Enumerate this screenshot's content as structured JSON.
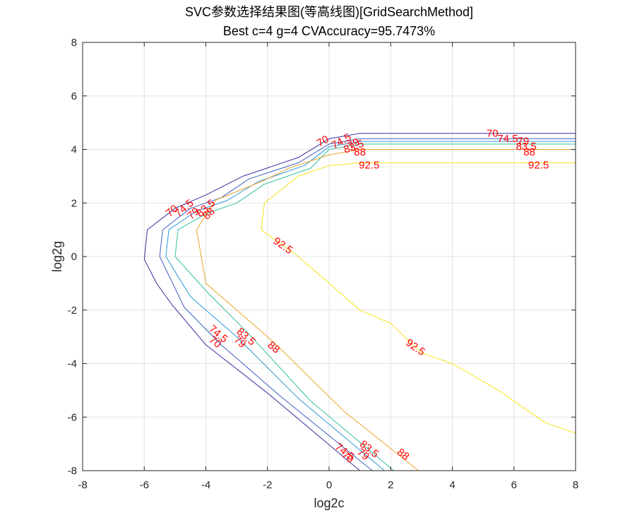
{
  "chart_data": {
    "type": "contour",
    "title": "SVC参数选择结果图(等高线图)[GridSearchMethod]",
    "subtitle": "Best c=4 g=4 CVAccuracy=95.7473%",
    "xlabel": "log2c",
    "ylabel": "log2g",
    "xlim": [
      -8,
      8
    ],
    "ylim": [
      -8,
      8
    ],
    "xticks": [
      "-8",
      "-6",
      "-4",
      "-2",
      "0",
      "2",
      "4",
      "6",
      "8"
    ],
    "yticks": [
      "-8",
      "-6",
      "-4",
      "-2",
      "0",
      "2",
      "4",
      "6",
      "8"
    ],
    "grid": true,
    "levels": [
      {
        "level": "70",
        "color": "#3b2f9b",
        "points": [
          [
            1,
            -8
          ],
          [
            -2,
            -5.1
          ],
          [
            -4,
            -3.3
          ],
          [
            -5.1,
            -1.8
          ],
          [
            -5.6,
            -1
          ],
          [
            -6,
            -0.1
          ],
          [
            -5.9,
            1
          ],
          [
            -5,
            1.8
          ],
          [
            -4,
            2.3
          ],
          [
            -2.8,
            3
          ],
          [
            -1,
            3.7
          ],
          [
            0,
            4.4
          ],
          [
            1,
            4.6
          ],
          [
            8,
            4.6
          ]
        ],
        "labels": [
          {
            "text": "70",
            "x": 0.6,
            "y": -7.5,
            "angle": 38
          },
          {
            "text": "70",
            "x": -3.7,
            "y": -3.2,
            "angle": 40
          },
          {
            "text": "70",
            "x": -5.1,
            "y": 1.7,
            "angle": -40
          },
          {
            "text": "70",
            "x": -0.2,
            "y": 4.3,
            "angle": -30
          },
          {
            "text": "70",
            "x": 5.3,
            "y": 4.6,
            "angle": 0
          }
        ]
      },
      {
        "level": "74.5",
        "color": "#3d5ec1",
        "points": [
          [
            1.4,
            -8
          ],
          [
            -1.6,
            -5.2
          ],
          [
            -3.5,
            -3.3
          ],
          [
            -4.7,
            -1.9
          ],
          [
            -5.5,
            0
          ],
          [
            -5.4,
            1
          ],
          [
            -4.5,
            1.8
          ],
          [
            -3.5,
            2.2
          ],
          [
            -2.6,
            2.9
          ],
          [
            -1,
            3.5
          ],
          [
            0,
            4.2
          ],
          [
            1,
            4.4
          ],
          [
            8,
            4.4
          ]
        ],
        "labels": [
          {
            "text": "74.5",
            "x": 0.5,
            "y": -7.3,
            "angle": 38
          },
          {
            "text": "74.5",
            "x": -3.6,
            "y": -2.9,
            "angle": 40
          },
          {
            "text": "74.5",
            "x": -4.7,
            "y": 1.8,
            "angle": -40
          },
          {
            "text": "74.5",
            "x": 0.4,
            "y": 4.3,
            "angle": -30
          },
          {
            "text": "74.5",
            "x": 5.8,
            "y": 4.4,
            "angle": 0
          }
        ]
      },
      {
        "level": "79",
        "color": "#2a96d8",
        "points": [
          [
            1.8,
            -8
          ],
          [
            -1,
            -5.3
          ],
          [
            -3,
            -3
          ],
          [
            -4.5,
            -1.5
          ],
          [
            -5.3,
            0
          ],
          [
            -5.2,
            1
          ],
          [
            -4.3,
            1.7
          ],
          [
            -3.3,
            2.1
          ],
          [
            -2.3,
            2.8
          ],
          [
            -0.8,
            3.4
          ],
          [
            0,
            4.1
          ],
          [
            1,
            4.3
          ],
          [
            8,
            4.3
          ]
        ],
        "labels": [
          {
            "text": "79",
            "x": 1.1,
            "y": -7.4,
            "angle": 38
          },
          {
            "text": "79",
            "x": -2.9,
            "y": -3.2,
            "angle": 40
          },
          {
            "text": "79",
            "x": -4.4,
            "y": 1.6,
            "angle": -40
          },
          {
            "text": "79",
            "x": 0.8,
            "y": 4.2,
            "angle": -30
          },
          {
            "text": "79",
            "x": 6.3,
            "y": 4.3,
            "angle": 0
          }
        ]
      },
      {
        "level": "83.5",
        "color": "#30c09e",
        "points": [
          [
            2.1,
            -8
          ],
          [
            -0.6,
            -5.4
          ],
          [
            -2.6,
            -2.9
          ],
          [
            -3.9,
            -1.4
          ],
          [
            -5,
            0
          ],
          [
            -4.9,
            1
          ],
          [
            -4,
            1.6
          ],
          [
            -3,
            2.0
          ],
          [
            -2.1,
            2.7
          ],
          [
            -0.6,
            3.3
          ],
          [
            0,
            4.0
          ],
          [
            1,
            4.2
          ],
          [
            8,
            4.2
          ]
        ],
        "labels": [
          {
            "text": "83.5",
            "x": 1.3,
            "y": -7.2,
            "angle": 38
          },
          {
            "text": "83.5",
            "x": -2.7,
            "y": -3.0,
            "angle": 40
          },
          {
            "text": "83.5",
            "x": -4.0,
            "y": 1.8,
            "angle": -40
          },
          {
            "text": "83.5",
            "x": 0.8,
            "y": 4.1,
            "angle": -20
          },
          {
            "text": "83.5",
            "x": 6.4,
            "y": 4.1,
            "angle": 0
          }
        ]
      },
      {
        "level": "88",
        "color": "#e8a52c",
        "points": [
          [
            2.9,
            -8
          ],
          [
            0.5,
            -5.8
          ],
          [
            -1.8,
            -3.2
          ],
          [
            -4,
            -1
          ],
          [
            -4.3,
            1
          ],
          [
            -3.7,
            2.1
          ],
          [
            -2.2,
            2.8
          ],
          [
            -1.3,
            3.3
          ],
          [
            0,
            3.8
          ],
          [
            1,
            4.0
          ],
          [
            8,
            4.0
          ]
        ],
        "labels": [
          {
            "text": "88",
            "x": 2.4,
            "y": -7.4,
            "angle": 38
          },
          {
            "text": "88",
            "x": -1.8,
            "y": -3.4,
            "angle": 40
          },
          {
            "text": "88",
            "x": -3.9,
            "y": 1.6,
            "angle": -45
          },
          {
            "text": "88",
            "x": 1.0,
            "y": 3.9,
            "angle": 0
          },
          {
            "text": "88",
            "x": 6.5,
            "y": 3.9,
            "angle": 0
          }
        ]
      },
      {
        "level": "92.5",
        "color": "#f5e414",
        "points": [
          [
            8,
            -6.6
          ],
          [
            7,
            -6.2
          ],
          [
            5.5,
            -5.0
          ],
          [
            4,
            -4
          ],
          [
            3,
            -3.6
          ],
          [
            2,
            -2.5
          ],
          [
            1,
            -2
          ],
          [
            0,
            -1
          ],
          [
            -1,
            0
          ],
          [
            -2.2,
            1
          ],
          [
            -2.1,
            2
          ],
          [
            -1,
            3
          ],
          [
            0,
            3.4
          ],
          [
            1,
            3.5
          ],
          [
            8,
            3.5
          ]
        ],
        "labels": [
          {
            "text": "92.5",
            "x": 2.8,
            "y": -3.4,
            "angle": 35
          },
          {
            "text": "92.5",
            "x": -1.5,
            "y": 0.4,
            "angle": 35
          },
          {
            "text": "92.5",
            "x": 1.3,
            "y": 3.4,
            "angle": 0
          },
          {
            "text": "92.5",
            "x": 6.8,
            "y": 3.4,
            "angle": 0
          }
        ]
      }
    ]
  }
}
